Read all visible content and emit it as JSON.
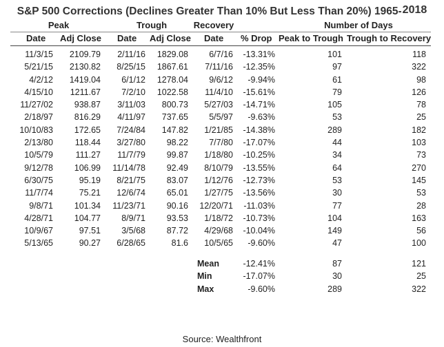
{
  "title": {
    "main": "S&P 500 Corrections (Declines Greater Than 10% But Less Than 20%) 1965-",
    "year": "2018"
  },
  "group_headers": {
    "peak": "Peak",
    "trough": "Trough",
    "recovery": "Recovery",
    "days": "Number of Days"
  },
  "column_headers": {
    "peak_date": "Date",
    "peak_close": "Adj Close",
    "trough_date": "Date",
    "trough_close": "Adj Close",
    "recovery_date": "Date",
    "drop": "% Drop",
    "peak_to_trough": "Peak to Trough",
    "trough_to_recovery": "Trough to Recovery"
  },
  "rows": [
    {
      "peak_date": "11/3/15",
      "peak_close": "2109.79",
      "trough_date": "2/11/16",
      "trough_close": "1829.08",
      "recovery_date": "6/7/16",
      "drop": "-13.31%",
      "p2t": "101",
      "t2r": "118"
    },
    {
      "peak_date": "5/21/15",
      "peak_close": "2130.82",
      "trough_date": "8/25/15",
      "trough_close": "1867.61",
      "recovery_date": "7/11/16",
      "drop": "-12.35%",
      "p2t": "97",
      "t2r": "322"
    },
    {
      "peak_date": "4/2/12",
      "peak_close": "1419.04",
      "trough_date": "6/1/12",
      "trough_close": "1278.04",
      "recovery_date": "9/6/12",
      "drop": "-9.94%",
      "p2t": "61",
      "t2r": "98"
    },
    {
      "peak_date": "4/15/10",
      "peak_close": "1211.67",
      "trough_date": "7/2/10",
      "trough_close": "1022.58",
      "recovery_date": "11/4/10",
      "drop": "-15.61%",
      "p2t": "79",
      "t2r": "126"
    },
    {
      "peak_date": "11/27/02",
      "peak_close": "938.87",
      "trough_date": "3/11/03",
      "trough_close": "800.73",
      "recovery_date": "5/27/03",
      "drop": "-14.71%",
      "p2t": "105",
      "t2r": "78"
    },
    {
      "peak_date": "2/18/97",
      "peak_close": "816.29",
      "trough_date": "4/11/97",
      "trough_close": "737.65",
      "recovery_date": "5/5/97",
      "drop": "-9.63%",
      "p2t": "53",
      "t2r": "25"
    },
    {
      "peak_date": "10/10/83",
      "peak_close": "172.65",
      "trough_date": "7/24/84",
      "trough_close": "147.82",
      "recovery_date": "1/21/85",
      "drop": "-14.38%",
      "p2t": "289",
      "t2r": "182"
    },
    {
      "peak_date": "2/13/80",
      "peak_close": "118.44",
      "trough_date": "3/27/80",
      "trough_close": "98.22",
      "recovery_date": "7/7/80",
      "drop": "-17.07%",
      "p2t": "44",
      "t2r": "103"
    },
    {
      "peak_date": "10/5/79",
      "peak_close": "111.27",
      "trough_date": "11/7/79",
      "trough_close": "99.87",
      "recovery_date": "1/18/80",
      "drop": "-10.25%",
      "p2t": "34",
      "t2r": "73"
    },
    {
      "peak_date": "9/12/78",
      "peak_close": "106.99",
      "trough_date": "11/14/78",
      "trough_close": "92.49",
      "recovery_date": "8/10/79",
      "drop": "-13.55%",
      "p2t": "64",
      "t2r": "270"
    },
    {
      "peak_date": "6/30/75",
      "peak_close": "95.19",
      "trough_date": "8/21/75",
      "trough_close": "83.07",
      "recovery_date": "1/12/76",
      "drop": "-12.73%",
      "p2t": "53",
      "t2r": "145"
    },
    {
      "peak_date": "11/7/74",
      "peak_close": "75.21",
      "trough_date": "12/6/74",
      "trough_close": "65.01",
      "recovery_date": "1/27/75",
      "drop": "-13.56%",
      "p2t": "30",
      "t2r": "53"
    },
    {
      "peak_date": "9/8/71",
      "peak_close": "101.34",
      "trough_date": "11/23/71",
      "trough_close": "90.16",
      "recovery_date": "12/20/71",
      "drop": "-11.03%",
      "p2t": "77",
      "t2r": "28"
    },
    {
      "peak_date": "4/28/71",
      "peak_close": "104.77",
      "trough_date": "8/9/71",
      "trough_close": "93.53",
      "recovery_date": "1/18/72",
      "drop": "-10.73%",
      "p2t": "104",
      "t2r": "163"
    },
    {
      "peak_date": "10/9/67",
      "peak_close": "97.51",
      "trough_date": "3/5/68",
      "trough_close": "87.72",
      "recovery_date": "4/29/68",
      "drop": "-10.04%",
      "p2t": "149",
      "t2r": "56"
    },
    {
      "peak_date": "5/13/65",
      "peak_close": "90.27",
      "trough_date": "6/28/65",
      "trough_close": "81.6",
      "recovery_date": "10/5/65",
      "drop": "-9.60%",
      "p2t": "47",
      "t2r": "100"
    }
  ],
  "summary": [
    {
      "label": "Mean",
      "drop": "-12.41%",
      "p2t": "87",
      "t2r": "121"
    },
    {
      "label": "Min",
      "drop": "-17.07%",
      "p2t": "30",
      "t2r": "25"
    },
    {
      "label": "Max",
      "drop": "-9.60%",
      "p2t": "289",
      "t2r": "322"
    }
  ],
  "source": "Source: Wealthfront"
}
